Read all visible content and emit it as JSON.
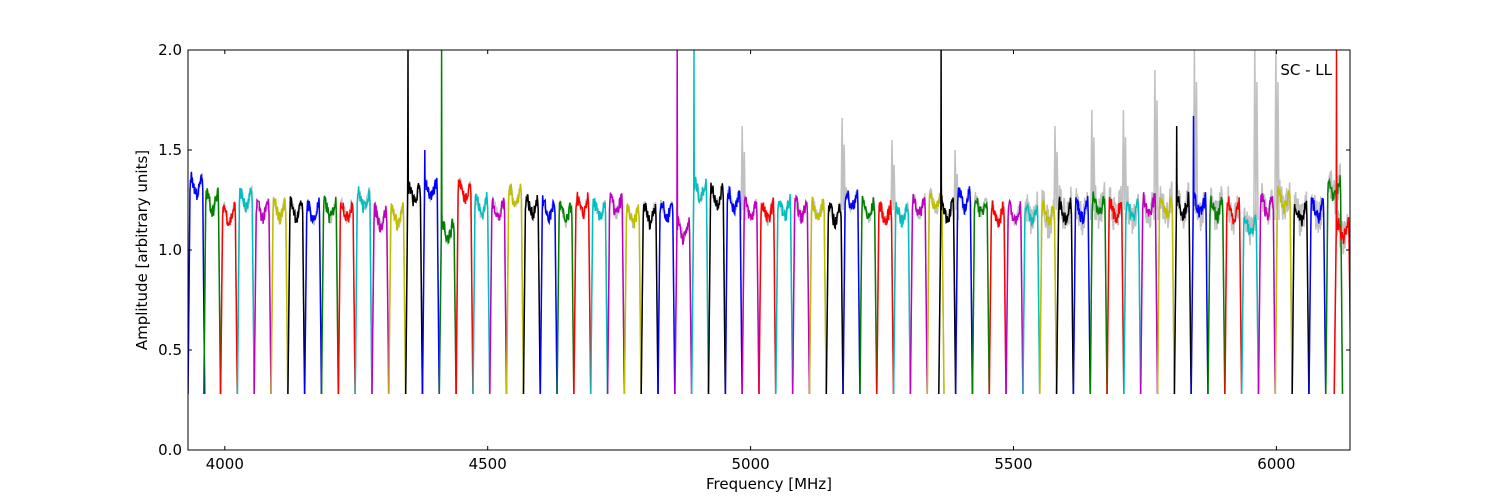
{
  "chart_data": {
    "type": "line",
    "title": "",
    "annotation": "SC - LL",
    "xlabel": "Frequency [MHz]",
    "ylabel": "Amplitude [arbitrary units]",
    "xlim": [
      3930,
      6140
    ],
    "ylim": [
      0.0,
      2.0
    ],
    "x_ticks": [
      4000,
      4500,
      5000,
      5500,
      6000
    ],
    "x_tick_labels": [
      "4000",
      "4500",
      "5000",
      "5500",
      "6000"
    ],
    "y_ticks": [
      0.0,
      0.5,
      1.0,
      1.5,
      2.0
    ],
    "y_tick_labels": [
      "0.0",
      "0.5",
      "1.0",
      "1.5",
      "2.0"
    ],
    "grid": false,
    "color_cycle": [
      "#0000ff",
      "#008000",
      "#ff0000",
      "#00bfbf",
      "#bf00bf",
      "#bfbf00",
      "#000000"
    ],
    "background_color": "#c0c0c0",
    "channel_width_mhz": 31.8,
    "channels": [
      {
        "start": 3930,
        "color": "blue",
        "level": 1.32
      },
      {
        "start": 3960,
        "color": "green",
        "level": 1.24
      },
      {
        "start": 3992,
        "color": "red",
        "level": 1.18
      },
      {
        "start": 4024,
        "color": "cyan",
        "level": 1.25
      },
      {
        "start": 4056,
        "color": "magenta",
        "level": 1.2
      },
      {
        "start": 4088,
        "color": "yellow",
        "level": 1.2
      },
      {
        "start": 4120,
        "color": "black",
        "level": 1.2
      },
      {
        "start": 4152,
        "color": "blue",
        "level": 1.19
      },
      {
        "start": 4184,
        "color": "green",
        "level": 1.2
      },
      {
        "start": 4216,
        "color": "red",
        "level": 1.2
      },
      {
        "start": 4248,
        "color": "cyan",
        "level": 1.25
      },
      {
        "start": 4280,
        "color": "magenta",
        "level": 1.16
      },
      {
        "start": 4312,
        "color": "yellow",
        "level": 1.17
      },
      {
        "start": 4344,
        "color": "black",
        "level": 1.28,
        "spike": 2.0
      },
      {
        "start": 4376,
        "color": "blue",
        "level": 1.3,
        "spike": 1.5
      },
      {
        "start": 4408,
        "color": "green",
        "level": 1.1,
        "spike": 2.0
      },
      {
        "start": 4440,
        "color": "red",
        "level": 1.3
      },
      {
        "start": 4472,
        "color": "cyan",
        "level": 1.22
      },
      {
        "start": 4504,
        "color": "magenta",
        "level": 1.2
      },
      {
        "start": 4536,
        "color": "yellow",
        "level": 1.27
      },
      {
        "start": 4568,
        "color": "black",
        "level": 1.22
      },
      {
        "start": 4600,
        "color": "blue",
        "level": 1.2
      },
      {
        "start": 4632,
        "color": "green",
        "level": 1.18
      },
      {
        "start": 4664,
        "color": "red",
        "level": 1.22
      },
      {
        "start": 4696,
        "color": "cyan",
        "level": 1.2
      },
      {
        "start": 4728,
        "color": "magenta",
        "level": 1.22
      },
      {
        "start": 4760,
        "color": "yellow",
        "level": 1.17
      },
      {
        "start": 4792,
        "color": "black",
        "level": 1.18
      },
      {
        "start": 4824,
        "color": "blue",
        "level": 1.2
      },
      {
        "start": 4856,
        "color": "magenta",
        "level": 1.1,
        "spike": 2.0
      },
      {
        "start": 4888,
        "color": "cyan",
        "level": 1.3,
        "spike": 2.0
      },
      {
        "start": 4920,
        "color": "black",
        "level": 1.27
      },
      {
        "start": 4952,
        "color": "blue",
        "level": 1.25
      },
      {
        "start": 4984,
        "color": "magenta",
        "level": 1.2
      },
      {
        "start": 5016,
        "color": "red",
        "level": 1.19
      },
      {
        "start": 5048,
        "color": "cyan",
        "level": 1.21
      },
      {
        "start": 5080,
        "color": "magenta",
        "level": 1.2
      },
      {
        "start": 5112,
        "color": "yellow",
        "level": 1.2
      },
      {
        "start": 5144,
        "color": "black",
        "level": 1.18
      },
      {
        "start": 5176,
        "color": "blue",
        "level": 1.25
      },
      {
        "start": 5208,
        "color": "green",
        "level": 1.2
      },
      {
        "start": 5240,
        "color": "red",
        "level": 1.18
      },
      {
        "start": 5272,
        "color": "cyan",
        "level": 1.18
      },
      {
        "start": 5304,
        "color": "magenta",
        "level": 1.22
      },
      {
        "start": 5336,
        "color": "yellow",
        "level": 1.24
      },
      {
        "start": 5358,
        "color": "black",
        "level": 1.2,
        "spike": 2.0
      },
      {
        "start": 5390,
        "color": "blue",
        "level": 1.25
      },
      {
        "start": 5422,
        "color": "green",
        "level": 1.22
      },
      {
        "start": 5454,
        "color": "red",
        "level": 1.18
      },
      {
        "start": 5486,
        "color": "magenta",
        "level": 1.18
      },
      {
        "start": 5518,
        "color": "cyan",
        "level": 1.18
      },
      {
        "start": 5550,
        "color": "yellow",
        "level": 1.18
      },
      {
        "start": 5582,
        "color": "black",
        "level": 1.2
      },
      {
        "start": 5614,
        "color": "blue",
        "level": 1.2
      },
      {
        "start": 5646,
        "color": "green",
        "level": 1.22
      },
      {
        "start": 5678,
        "color": "red",
        "level": 1.2
      },
      {
        "start": 5710,
        "color": "cyan",
        "level": 1.2
      },
      {
        "start": 5742,
        "color": "magenta",
        "level": 1.22
      },
      {
        "start": 5774,
        "color": "yellow",
        "level": 1.22
      },
      {
        "start": 5806,
        "color": "black",
        "level": 1.22,
        "spike": 1.62
      },
      {
        "start": 5838,
        "color": "blue",
        "level": 1.22,
        "spike": 1.67
      },
      {
        "start": 5870,
        "color": "green",
        "level": 1.2
      },
      {
        "start": 5902,
        "color": "red",
        "level": 1.2
      },
      {
        "start": 5934,
        "color": "cyan",
        "level": 1.12
      },
      {
        "start": 5966,
        "color": "magenta",
        "level": 1.22
      },
      {
        "start": 5998,
        "color": "yellow",
        "level": 1.25
      },
      {
        "start": 6030,
        "color": "black",
        "level": 1.18
      },
      {
        "start": 6062,
        "color": "blue",
        "level": 1.2
      },
      {
        "start": 6094,
        "color": "green",
        "level": 1.3
      },
      {
        "start": 6110,
        "color": "red",
        "level": 1.1,
        "spike": 2.0
      }
    ],
    "grey_bursts": [
      {
        "x": 4985,
        "y": 1.62
      },
      {
        "x": 5175,
        "y": 1.66
      },
      {
        "x": 5270,
        "y": 1.55
      },
      {
        "x": 5390,
        "y": 1.5
      },
      {
        "x": 5580,
        "y": 1.62
      },
      {
        "x": 5650,
        "y": 1.7
      },
      {
        "x": 5710,
        "y": 1.7
      },
      {
        "x": 5770,
        "y": 1.9
      },
      {
        "x": 5845,
        "y": 2.0
      },
      {
        "x": 5960,
        "y": 2.0
      },
      {
        "x": 6000,
        "y": 2.0
      }
    ]
  }
}
